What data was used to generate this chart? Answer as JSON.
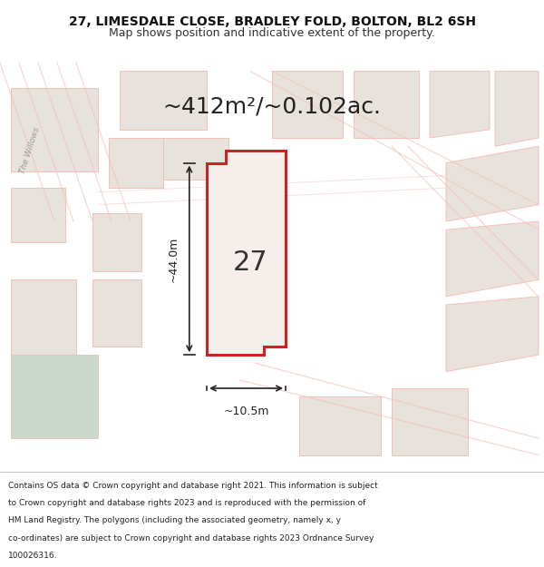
{
  "title_line1": "27, LIMESDALE CLOSE, BRADLEY FOLD, BOLTON, BL2 6SH",
  "title_line2": "Map shows position and indicative extent of the property.",
  "area_text": "~412m²/~0.102ac.",
  "label_number": "27",
  "dim_vertical": "~44.0m",
  "dim_horizontal": "~10.5m",
  "footer_lines": [
    "Contains OS data © Crown copyright and database right 2021. This information is subject",
    "to Crown copyright and database rights 2023 and is reproduced with the permission of",
    "HM Land Registry. The polygons (including the associated geometry, namely x, y",
    "co-ordinates) are subject to Crown copyright and database rights 2023 Ordnance Survey",
    "100026316."
  ],
  "bg_color": "#f0ede8",
  "red_color": "#cc2222",
  "light_red": "#f5c0b8",
  "bg_fill": "#e8e2dc",
  "green_fill": "#ccd8cc",
  "prop_fill": "#f5eeea",
  "white": "#ffffff",
  "dark_text": "#222222",
  "gray_text": "#888888",
  "figsize": [
    6.0,
    6.25
  ],
  "dpi": 100
}
